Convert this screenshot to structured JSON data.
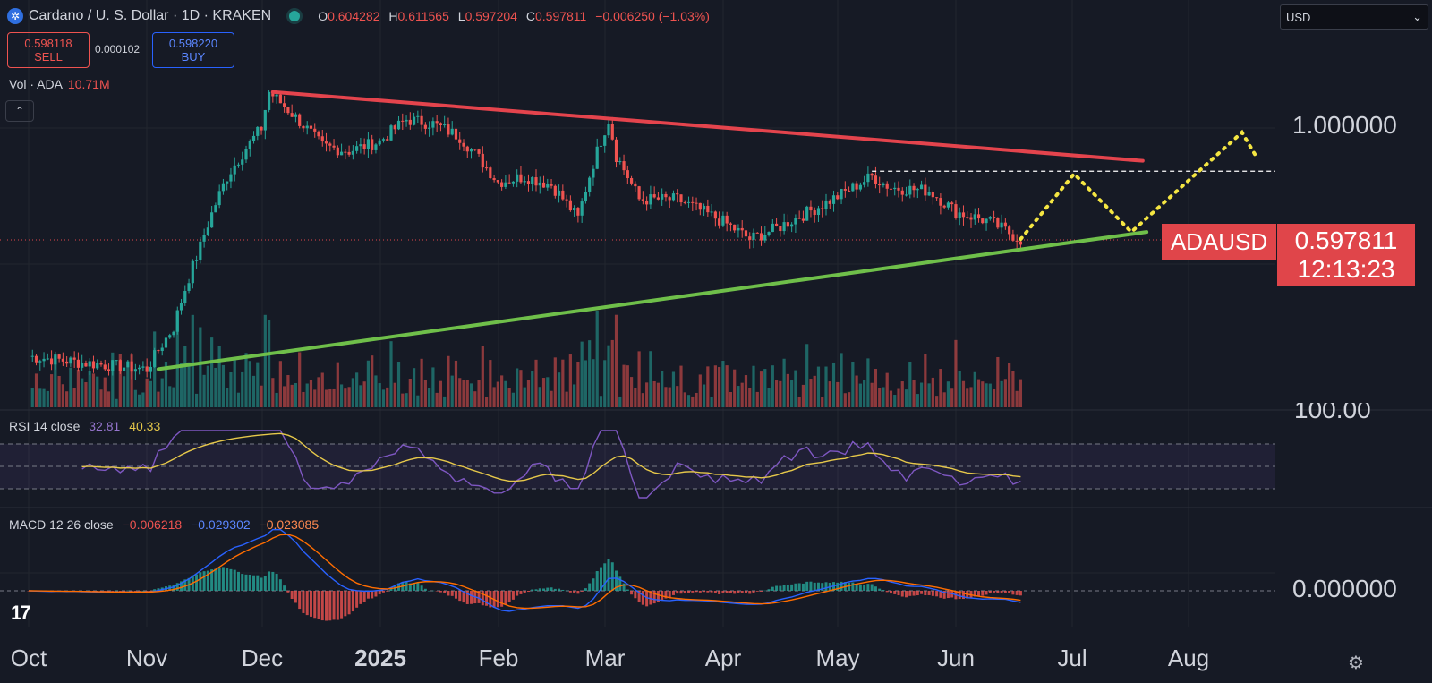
{
  "header": {
    "symbol_title": "Cardano / U. S. Dollar · 1D · KRAKEN",
    "ohlc": {
      "open_key": "O",
      "open": "0.604282",
      "high_key": "H",
      "high": "0.611565",
      "low_key": "L",
      "low": "0.597204",
      "close_key": "C",
      "close": "0.597811",
      "change": "−0.006250 (−1.03%)"
    }
  },
  "trade": {
    "sell_price": "0.598118",
    "sell_label": "SELL",
    "spread": "0.000102",
    "buy_price": "0.598220",
    "buy_label": "BUY"
  },
  "volume": {
    "label": "Vol · ADA",
    "value": "10.71M"
  },
  "collapse_glyph": "⌃",
  "currency": {
    "selected": "USD",
    "arrow": "⌄"
  },
  "price_axis": {
    "level_1": "1.000000",
    "rsi_100": "100.00",
    "macd_zero": "0.000000"
  },
  "last_price": {
    "symbol": "ADAUSD",
    "price": "0.597811",
    "countdown": "12:13:23"
  },
  "rsi": {
    "label": "RSI 14 close",
    "value": "32.81",
    "ma": "40.33"
  },
  "macd": {
    "label": "MACD 12 26 close",
    "hist": "−0.006218",
    "macd": "−0.029302",
    "signal": "−0.023085"
  },
  "time_axis": {
    "months": [
      "Oct",
      "Nov",
      "Dec",
      "2025",
      "Feb",
      "Mar",
      "Apr",
      "May",
      "Jun",
      "Jul",
      "Aug"
    ]
  },
  "logo": "17",
  "settings_glyph": "⚙",
  "colors": {
    "up": "#26a69a",
    "down": "#ef5350",
    "resistance": "#e4444d",
    "support": "#6fbf4a",
    "projection": "#f5e642",
    "rsi": "#7e57c2",
    "rsi_ma": "#e6c84a",
    "macd": "#2962ff",
    "signal": "#ff6d00"
  },
  "chart_data": {
    "type": "candlestick",
    "title": "Cardano / U. S. Dollar · 1D · KRAKEN",
    "x": [
      "2024-10-01",
      "2024-10-15",
      "2024-11-01",
      "2024-11-08",
      "2024-11-15",
      "2024-11-22",
      "2024-12-01",
      "2024-12-03",
      "2024-12-10",
      "2024-12-17",
      "2024-12-24",
      "2025-01-01",
      "2025-01-08",
      "2025-01-15",
      "2025-01-22",
      "2025-02-01",
      "2025-02-08",
      "2025-02-15",
      "2025-02-22",
      "2025-03-02",
      "2025-03-04",
      "2025-03-10",
      "2025-03-20",
      "2025-04-01",
      "2025-04-08",
      "2025-04-15",
      "2025-04-25",
      "2025-05-01",
      "2025-05-10",
      "2025-05-15",
      "2025-05-25",
      "2025-06-01",
      "2025-06-10",
      "2025-06-18"
    ],
    "close": [
      0.35,
      0.34,
      0.33,
      0.4,
      0.58,
      0.8,
      1.0,
      1.18,
      1.05,
      0.92,
      0.9,
      0.94,
      1.04,
      1.02,
      0.96,
      0.78,
      0.8,
      0.77,
      0.66,
      1.04,
      0.88,
      0.72,
      0.72,
      0.65,
      0.6,
      0.63,
      0.69,
      0.73,
      0.8,
      0.76,
      0.75,
      0.68,
      0.65,
      0.597811
    ],
    "volume_label": "Vol · ADA 10.71M",
    "annotations": {
      "resistance_line": {
        "from": [
          "2024-12-04",
          1.18
        ],
        "to": [
          "2025-07-20",
          0.86
        ]
      },
      "support_line": {
        "from": [
          "2024-11-04",
          0.33
        ],
        "to": [
          "2025-07-21",
          0.62
        ]
      },
      "horizontal_level": 0.82,
      "projection_path": [
        [
          "2025-06-18",
          0.6
        ],
        [
          "2025-07-02",
          0.81
        ],
        [
          "2025-07-17",
          0.62
        ],
        [
          "2025-08-15",
          0.98
        ],
        [
          "2025-08-19",
          0.87
        ]
      ]
    },
    "price_ticks": [
      1.0
    ],
    "rsi": {
      "period": 14,
      "value": 32.81,
      "ma": 40.33,
      "bands": [
        30,
        50,
        70
      ]
    },
    "macd": {
      "fast": 12,
      "slow": 26,
      "histogram": -0.006218,
      "macd": -0.029302,
      "signal": -0.023085
    }
  }
}
